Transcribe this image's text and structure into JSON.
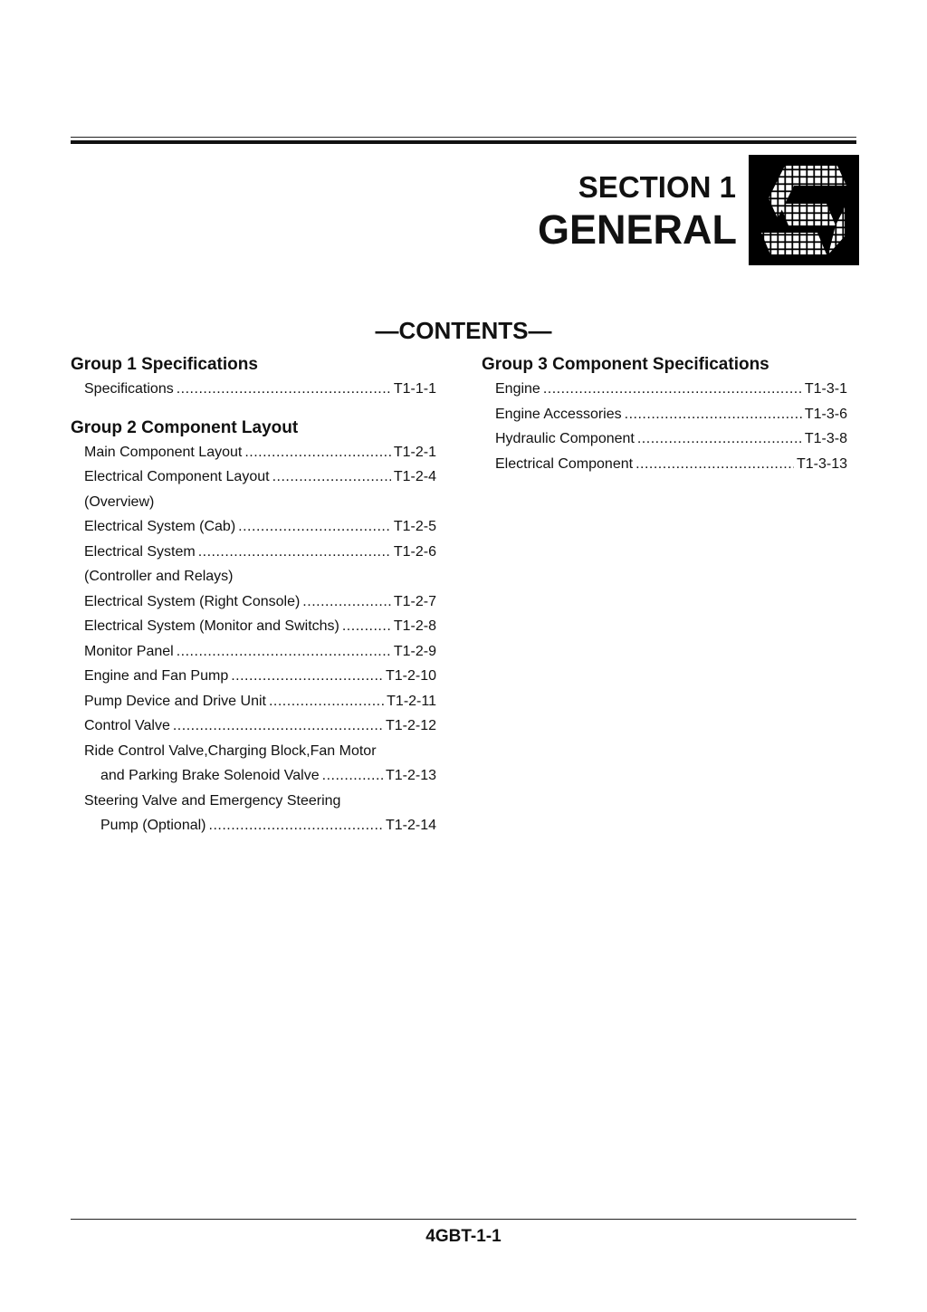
{
  "header": {
    "section": "SECTION 1",
    "title": "GENERAL",
    "logo_icon": "section-s-cube-logo"
  },
  "contents_title": "—CONTENTS—",
  "groups": [
    {
      "title": "Group 1 Specifications",
      "items": [
        {
          "label": "Specifications",
          "page": "T1-1-1"
        }
      ]
    },
    {
      "title": "Group 2 Component Layout",
      "items": [
        {
          "label": "Main Component Layout",
          "page": "T1-2-1"
        },
        {
          "label": "Electrical Component Layout",
          "page": "T1-2-4"
        },
        {
          "label": "(Overview)",
          "page": ""
        },
        {
          "label": "Electrical System (Cab)",
          "page": "T1-2-5"
        },
        {
          "label": "Electrical System",
          "page": "T1-2-6"
        },
        {
          "label": "(Controller and Relays)",
          "page": ""
        },
        {
          "label": "Electrical System (Right Console)",
          "page": "T1-2-7"
        },
        {
          "label": "Electrical System (Monitor and Switchs)",
          "page": "T1-2-8"
        },
        {
          "label": "Monitor Panel",
          "page": "T1-2-9"
        },
        {
          "label": "Engine and Fan Pump",
          "page": "T1-2-10"
        },
        {
          "label": "Pump Device and Drive Unit",
          "page": "T1-2-11"
        },
        {
          "label": "Control Valve",
          "page": "T1-2-12"
        },
        {
          "label": "Ride Control Valve,Charging Block,Fan Motor",
          "page": ""
        },
        {
          "label": "and Parking Brake Solenoid Valve",
          "page": "T1-2-13"
        },
        {
          "label": "Steering Valve and Emergency Steering",
          "page": ""
        },
        {
          "label": "Pump (Optional)",
          "page": "T1-2-14"
        }
      ]
    },
    {
      "title": "Group 3 Component Specifications",
      "items": [
        {
          "label": "Engine",
          "page": "T1-3-1"
        },
        {
          "label": "Engine Accessories",
          "page": "T1-3-6"
        },
        {
          "label": "Hydraulic Component",
          "page": "T1-3-8"
        },
        {
          "label": "Electrical Component",
          "page": "T1-3-13"
        }
      ]
    }
  ],
  "footer": {
    "page_id": "4GBT-1-1"
  }
}
